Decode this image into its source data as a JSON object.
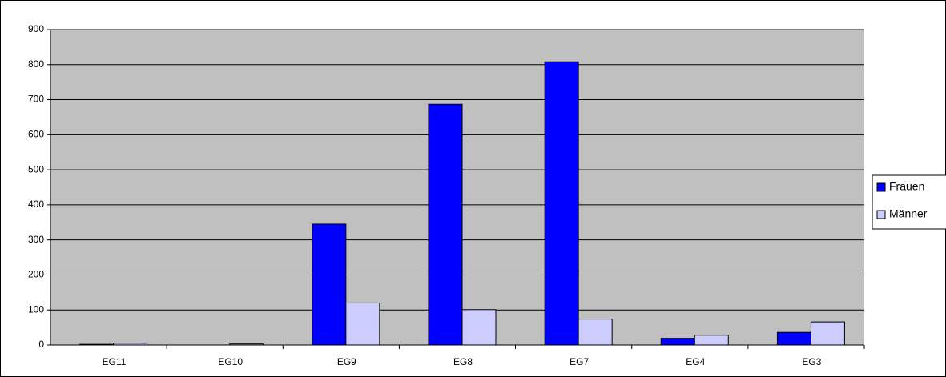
{
  "chart_data": {
    "type": "bar",
    "categories": [
      "EG11",
      "EG10",
      "EG9",
      "EG8",
      "EG7",
      "EG4",
      "EG3"
    ],
    "series": [
      {
        "name": "Frauen",
        "color": "#0000ff",
        "values": [
          2,
          0,
          345,
          687,
          808,
          19,
          36
        ]
      },
      {
        "name": "Männer",
        "color": "#ccccff",
        "values": [
          5,
          3,
          120,
          101,
          74,
          28,
          66
        ]
      }
    ],
    "ylim": [
      0,
      900
    ],
    "yticks": [
      0,
      100,
      200,
      300,
      400,
      500,
      600,
      700,
      800,
      900
    ],
    "grid": true,
    "legend": "right"
  }
}
